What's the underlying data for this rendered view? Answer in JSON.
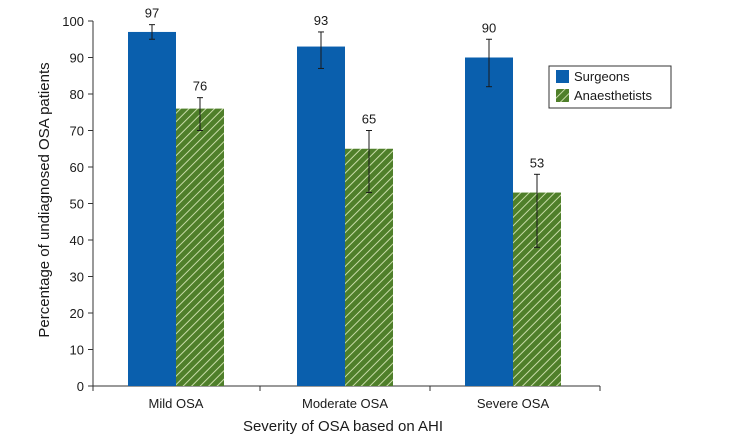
{
  "chart_data": {
    "type": "bar",
    "title": "",
    "xlabel": "Severity of OSA based on AHI",
    "ylabel": "Percentage of undiagnosed OSA patients",
    "ylim": [
      0,
      100
    ],
    "yticks": [
      0,
      10,
      20,
      30,
      40,
      50,
      60,
      70,
      80,
      90,
      100
    ],
    "categories": [
      "Mild OSA",
      "Moderate OSA",
      "Severe OSA"
    ],
    "grid": false,
    "legend_position": "right",
    "series": [
      {
        "name": "Surgeons",
        "color": "#0a5fad",
        "pattern": "solid",
        "values": [
          97,
          93,
          90
        ],
        "err_low": [
          95,
          87,
          82
        ],
        "err_high": [
          99,
          97,
          95
        ],
        "labels": [
          "97",
          "93",
          "90"
        ]
      },
      {
        "name": "Anaesthetists",
        "color": "#4f7f2a",
        "pattern": "hatched",
        "values": [
          76,
          65,
          53
        ],
        "err_low": [
          70,
          53,
          38
        ],
        "err_high": [
          79,
          70,
          58
        ],
        "labels": [
          "76",
          "65",
          "53"
        ]
      }
    ]
  }
}
